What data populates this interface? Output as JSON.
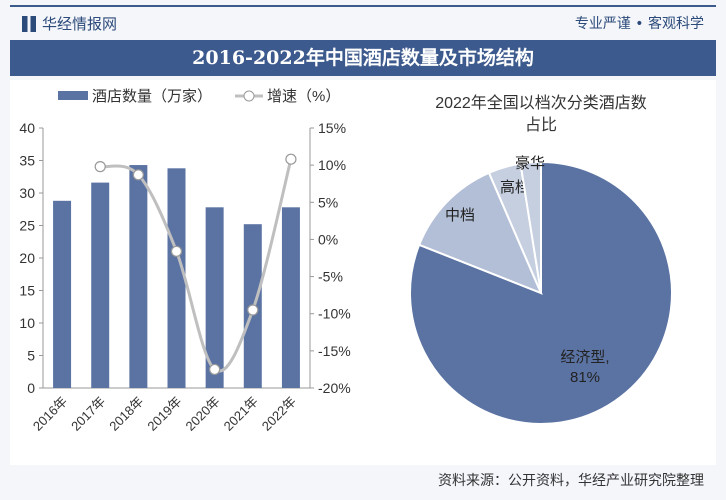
{
  "header": {
    "brand": "华经情报网",
    "slogan": "专业严谨 • 客观科学"
  },
  "title": "2016-2022年中国酒店数量及市场结构",
  "footer": "资料来源：公开资料，华经产业研究院整理",
  "colors": {
    "bar": "#5b73a3",
    "line": "#bfbfbf",
    "pie_main": "#5b73a3",
    "pie_light": "#c5cfe0"
  },
  "chart_data": [
    {
      "type": "bar+line",
      "categories": [
        "2016年",
        "2017年",
        "2018年",
        "2019年",
        "2020年",
        "2021年",
        "2022年"
      ],
      "series": [
        {
          "name": "酒店数量（万家）",
          "type": "bar",
          "axis": "left",
          "values": [
            28.8,
            31.6,
            34.3,
            33.8,
            27.8,
            25.2,
            27.8
          ]
        },
        {
          "name": "增速（%）",
          "type": "line",
          "axis": "right",
          "values": [
            null,
            9.8,
            8.7,
            -1.6,
            -17.5,
            -9.5,
            10.8
          ]
        }
      ],
      "left_ylim": [
        0,
        40
      ],
      "left_ticks": [
        "0",
        "5",
        "10",
        "15",
        "20",
        "25",
        "30",
        "35",
        "40"
      ],
      "right_ylim": [
        -20,
        15
      ],
      "right_ticks": [
        "-20%",
        "-15%",
        "-10%",
        "-5%",
        "0%",
        "5%",
        "10%",
        "15%"
      ],
      "legend": "top",
      "grid": false
    },
    {
      "type": "pie",
      "title": "2022年全国以档次分类酒店数占比",
      "slices": [
        {
          "label": "经济型",
          "value": 81,
          "value_label": "81%"
        },
        {
          "label": "中档",
          "value": 12.5
        },
        {
          "label": "高档",
          "value": 4
        },
        {
          "label": "豪华",
          "value": 2.5
        }
      ]
    }
  ]
}
